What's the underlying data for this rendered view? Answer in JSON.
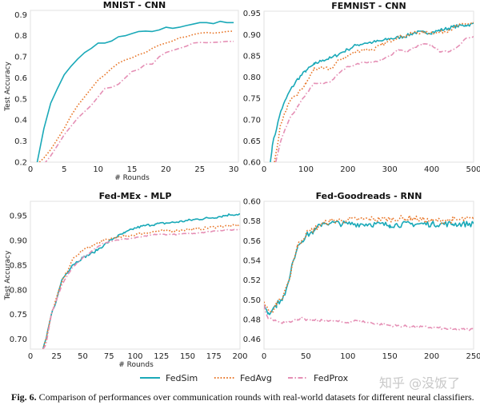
{
  "legend": [
    {
      "name": "FedSim",
      "color": "#1aa9b8",
      "style": "solid"
    },
    {
      "name": "FedAvg",
      "color": "#e8772a",
      "style": "dotted"
    },
    {
      "name": "FedProx",
      "color": "#e58fb5",
      "style": "dashdot"
    }
  ],
  "legend_placement": "bottom-center",
  "caption": {
    "label": "Fig. 6.",
    "text": "Comparison of performances over communication rounds with real-world datasets for different neural classifiers."
  },
  "watermark": "知乎 @没饭了",
  "chart_data": [
    {
      "type": "line",
      "title": "MNIST - CNN",
      "xlabel": "# Rounds",
      "ylabel": "Test Accuracy",
      "xlim": [
        0,
        30.7
      ],
      "ylim": [
        0.2,
        0.92
      ],
      "grid": false,
      "xticks": [
        {
          "v": 0,
          "label": "0"
        },
        {
          "v": 5,
          "label": "5"
        },
        {
          "v": 10,
          "label": "10"
        },
        {
          "v": 15,
          "label": "15"
        },
        {
          "v": 20,
          "label": "20"
        },
        {
          "v": 25,
          "label": "25"
        },
        {
          "v": 30,
          "label": "30"
        }
      ],
      "yticks": [
        {
          "v": 0.2,
          "label": "0.2"
        },
        {
          "v": 0.3,
          "label": "0.3"
        },
        {
          "v": 0.4,
          "label": "0.4"
        },
        {
          "v": 0.5,
          "label": "0.5"
        },
        {
          "v": 0.6,
          "label": "0.6"
        },
        {
          "v": 0.7,
          "label": "0.7"
        },
        {
          "v": 0.8,
          "label": "0.8"
        },
        {
          "v": 0.9,
          "label": "0.9"
        }
      ],
      "series": [
        {
          "name": "FedSim",
          "x": [
            1,
            2,
            3,
            4,
            5,
            6,
            7,
            8,
            9,
            10,
            11,
            12,
            13,
            14,
            15,
            16,
            17,
            18,
            19,
            20,
            21,
            22,
            23,
            24,
            25,
            26,
            27,
            28,
            29,
            30
          ],
          "y": [
            0.2,
            0.36,
            0.48,
            0.55,
            0.615,
            0.655,
            0.69,
            0.72,
            0.74,
            0.765,
            0.765,
            0.775,
            0.795,
            0.8,
            0.81,
            0.82,
            0.822,
            0.82,
            0.827,
            0.84,
            0.835,
            0.84,
            0.848,
            0.855,
            0.862,
            0.862,
            0.857,
            0.868,
            0.862,
            0.862
          ]
        },
        {
          "name": "FedAvg",
          "x": [
            1,
            2,
            3,
            4,
            5,
            6,
            7,
            8,
            9,
            10,
            11,
            12,
            13,
            14,
            15,
            16,
            17,
            18,
            19,
            20,
            21,
            22,
            23,
            24,
            25,
            26,
            27,
            28,
            29,
            30
          ],
          "y": [
            0.19,
            0.22,
            0.26,
            0.31,
            0.36,
            0.42,
            0.47,
            0.51,
            0.55,
            0.59,
            0.615,
            0.645,
            0.67,
            0.685,
            0.695,
            0.71,
            0.72,
            0.74,
            0.755,
            0.765,
            0.775,
            0.79,
            0.795,
            0.805,
            0.812,
            0.815,
            0.812,
            0.815,
            0.82,
            0.822
          ]
        },
        {
          "name": "FedProx",
          "x": [
            2,
            3,
            4,
            5,
            6,
            7,
            8,
            9,
            10,
            11,
            12,
            13,
            14,
            15,
            16,
            17,
            18,
            19,
            20,
            21,
            22,
            23,
            24,
            25,
            26,
            27,
            28,
            29,
            30
          ],
          "y": [
            0.19,
            0.23,
            0.28,
            0.33,
            0.37,
            0.41,
            0.44,
            0.47,
            0.51,
            0.55,
            0.555,
            0.57,
            0.6,
            0.63,
            0.64,
            0.665,
            0.665,
            0.7,
            0.72,
            0.73,
            0.74,
            0.75,
            0.765,
            0.768,
            0.767,
            0.768,
            0.77,
            0.773,
            0.773
          ]
        }
      ]
    },
    {
      "type": "line",
      "title": "FEMNIST - CNN",
      "xlabel": "",
      "ylabel": "",
      "xlim": [
        0,
        500
      ],
      "ylim": [
        0.6,
        0.955
      ],
      "grid": false,
      "xticks": [
        {
          "v": 0,
          "label": "0"
        },
        {
          "v": 100,
          "label": "100"
        },
        {
          "v": 200,
          "label": "200"
        },
        {
          "v": 300,
          "label": "300"
        },
        {
          "v": 400,
          "label": "400"
        },
        {
          "v": 500,
          "label": "500"
        }
      ],
      "yticks": [
        {
          "v": 0.6,
          "label": "0.60"
        },
        {
          "v": 0.65,
          "label": "0.65"
        },
        {
          "v": 0.7,
          "label": "0.70"
        },
        {
          "v": 0.75,
          "label": "0.75"
        },
        {
          "v": 0.8,
          "label": "0.80"
        },
        {
          "v": 0.85,
          "label": "0.85"
        },
        {
          "v": 0.9,
          "label": "0.90"
        },
        {
          "v": 0.95,
          "label": "0.95"
        }
      ],
      "series": [
        {
          "name": "FedSim",
          "x": [
            15,
            20,
            40,
            60,
            80,
            100,
            120,
            140,
            160,
            180,
            200,
            220,
            240,
            260,
            280,
            300,
            320,
            340,
            360,
            380,
            400,
            420,
            440,
            460,
            480,
            500
          ],
          "y": [
            0.6,
            0.64,
            0.72,
            0.765,
            0.795,
            0.815,
            0.83,
            0.84,
            0.845,
            0.855,
            0.865,
            0.875,
            0.88,
            0.882,
            0.885,
            0.89,
            0.893,
            0.897,
            0.905,
            0.905,
            0.905,
            0.91,
            0.915,
            0.92,
            0.922,
            0.925
          ]
        },
        {
          "name": "FedAvg",
          "x": [
            25,
            40,
            60,
            80,
            100,
            120,
            140,
            160,
            180,
            200,
            220,
            240,
            260,
            280,
            300,
            320,
            340,
            360,
            380,
            400,
            420,
            440,
            460,
            480,
            500
          ],
          "y": [
            0.6,
            0.69,
            0.74,
            0.76,
            0.785,
            0.82,
            0.82,
            0.82,
            0.84,
            0.85,
            0.86,
            0.865,
            0.865,
            0.875,
            0.885,
            0.895,
            0.897,
            0.905,
            0.905,
            0.905,
            0.905,
            0.91,
            0.92,
            0.925,
            0.927
          ]
        },
        {
          "name": "FedProx",
          "x": [
            28,
            40,
            60,
            80,
            100,
            120,
            140,
            160,
            180,
            200,
            220,
            240,
            260,
            280,
            300,
            320,
            340,
            360,
            380,
            400,
            420,
            440,
            460,
            480,
            500
          ],
          "y": [
            0.6,
            0.65,
            0.7,
            0.73,
            0.76,
            0.785,
            0.785,
            0.79,
            0.81,
            0.825,
            0.83,
            0.835,
            0.835,
            0.84,
            0.85,
            0.865,
            0.86,
            0.87,
            0.878,
            0.875,
            0.86,
            0.86,
            0.87,
            0.89,
            0.895
          ]
        }
      ]
    },
    {
      "type": "line",
      "title": "Fed-MEx - MLP",
      "xlabel": "# Rounds",
      "ylabel": "Test Accuracy",
      "xlim": [
        0,
        200
      ],
      "ylim": [
        0.68,
        0.979
      ],
      "grid": false,
      "xticks": [
        {
          "v": 0,
          "label": "0"
        },
        {
          "v": 25,
          "label": "25"
        },
        {
          "v": 50,
          "label": "50"
        },
        {
          "v": 75,
          "label": "75"
        },
        {
          "v": 100,
          "label": "100"
        },
        {
          "v": 125,
          "label": "125"
        },
        {
          "v": 150,
          "label": "150"
        },
        {
          "v": 175,
          "label": "175"
        },
        {
          "v": 200,
          "label": "200"
        }
      ],
      "yticks": [
        {
          "v": 0.7,
          "label": "0.70"
        },
        {
          "v": 0.75,
          "label": "0.75"
        },
        {
          "v": 0.8,
          "label": "0.80"
        },
        {
          "v": 0.85,
          "label": "0.85"
        },
        {
          "v": 0.9,
          "label": "0.90"
        },
        {
          "v": 0.95,
          "label": "0.95"
        }
      ],
      "series": [
        {
          "name": "FedSim",
          "x": [
            12,
            15,
            20,
            25,
            30,
            40,
            50,
            60,
            70,
            80,
            90,
            100,
            110,
            120,
            130,
            140,
            150,
            160,
            170,
            180,
            190,
            200
          ],
          "y": [
            0.68,
            0.7,
            0.75,
            0.78,
            0.82,
            0.85,
            0.865,
            0.875,
            0.89,
            0.905,
            0.915,
            0.925,
            0.93,
            0.933,
            0.935,
            0.937,
            0.94,
            0.943,
            0.945,
            0.948,
            0.952,
            0.953
          ]
        },
        {
          "name": "FedAvg",
          "x": [
            12,
            15,
            20,
            25,
            30,
            40,
            50,
            60,
            70,
            80,
            90,
            100,
            120,
            140,
            160,
            180,
            200
          ],
          "y": [
            0.68,
            0.7,
            0.75,
            0.785,
            0.815,
            0.86,
            0.88,
            0.89,
            0.9,
            0.905,
            0.908,
            0.912,
            0.918,
            0.92,
            0.923,
            0.928,
            0.93
          ]
        },
        {
          "name": "FedProx",
          "x": [
            12,
            15,
            20,
            25,
            30,
            40,
            50,
            60,
            70,
            80,
            100,
            120,
            140,
            160,
            180,
            200
          ],
          "y": [
            0.68,
            0.69,
            0.75,
            0.78,
            0.81,
            0.845,
            0.865,
            0.88,
            0.895,
            0.9,
            0.905,
            0.912,
            0.912,
            0.915,
            0.92,
            0.922
          ]
        }
      ]
    },
    {
      "type": "line",
      "title": "Fed-Goodreads - RNN",
      "xlabel": "",
      "ylabel": "",
      "xlim": [
        0,
        250
      ],
      "ylim": [
        0.45,
        0.6
      ],
      "grid": false,
      "xticks": [
        {
          "v": 0,
          "label": "0"
        },
        {
          "v": 50,
          "label": "50"
        },
        {
          "v": 100,
          "label": "100"
        },
        {
          "v": 150,
          "label": "150"
        },
        {
          "v": 200,
          "label": "200"
        },
        {
          "v": 250,
          "label": "250"
        }
      ],
      "yticks": [
        {
          "v": 0.46,
          "label": "0.46"
        },
        {
          "v": 0.48,
          "label": "0.48"
        },
        {
          "v": 0.5,
          "label": "0.50"
        },
        {
          "v": 0.52,
          "label": "0.52"
        },
        {
          "v": 0.54,
          "label": "0.54"
        },
        {
          "v": 0.56,
          "label": "0.56"
        },
        {
          "v": 0.58,
          "label": "0.58"
        },
        {
          "v": 0.6,
          "label": "0.60"
        }
      ],
      "series": [
        {
          "name": "FedSim",
          "x": [
            0,
            3,
            5,
            10,
            15,
            20,
            25,
            30,
            35,
            40,
            45,
            50,
            60,
            70,
            80,
            100,
            125,
            150,
            175,
            200,
            225,
            250
          ],
          "y": [
            0.495,
            0.49,
            0.487,
            0.49,
            0.495,
            0.5,
            0.505,
            0.52,
            0.54,
            0.555,
            0.56,
            0.565,
            0.57,
            0.578,
            0.578,
            0.577,
            0.577,
            0.576,
            0.577,
            0.577,
            0.577,
            0.577
          ]
        },
        {
          "name": "FedAvg",
          "x": [
            0,
            5,
            10,
            15,
            20,
            25,
            30,
            35,
            40,
            45,
            50,
            60,
            70,
            80,
            100,
            125,
            150,
            175,
            200,
            225,
            250
          ],
          "y": [
            0.498,
            0.49,
            0.487,
            0.495,
            0.5,
            0.51,
            0.52,
            0.54,
            0.555,
            0.56,
            0.567,
            0.572,
            0.577,
            0.58,
            0.581,
            0.582,
            0.582,
            0.583,
            0.58,
            0.581,
            0.582
          ]
        },
        {
          "name": "FedProx",
          "x": [
            0,
            3,
            5,
            10,
            20,
            30,
            40,
            45,
            50,
            75,
            100,
            110,
            125,
            150,
            175,
            200,
            225,
            250
          ],
          "y": [
            0.495,
            0.485,
            0.481,
            0.48,
            0.477,
            0.478,
            0.48,
            0.482,
            0.479,
            0.479,
            0.477,
            0.479,
            0.477,
            0.474,
            0.473,
            0.472,
            0.47,
            0.47
          ]
        }
      ]
    }
  ]
}
